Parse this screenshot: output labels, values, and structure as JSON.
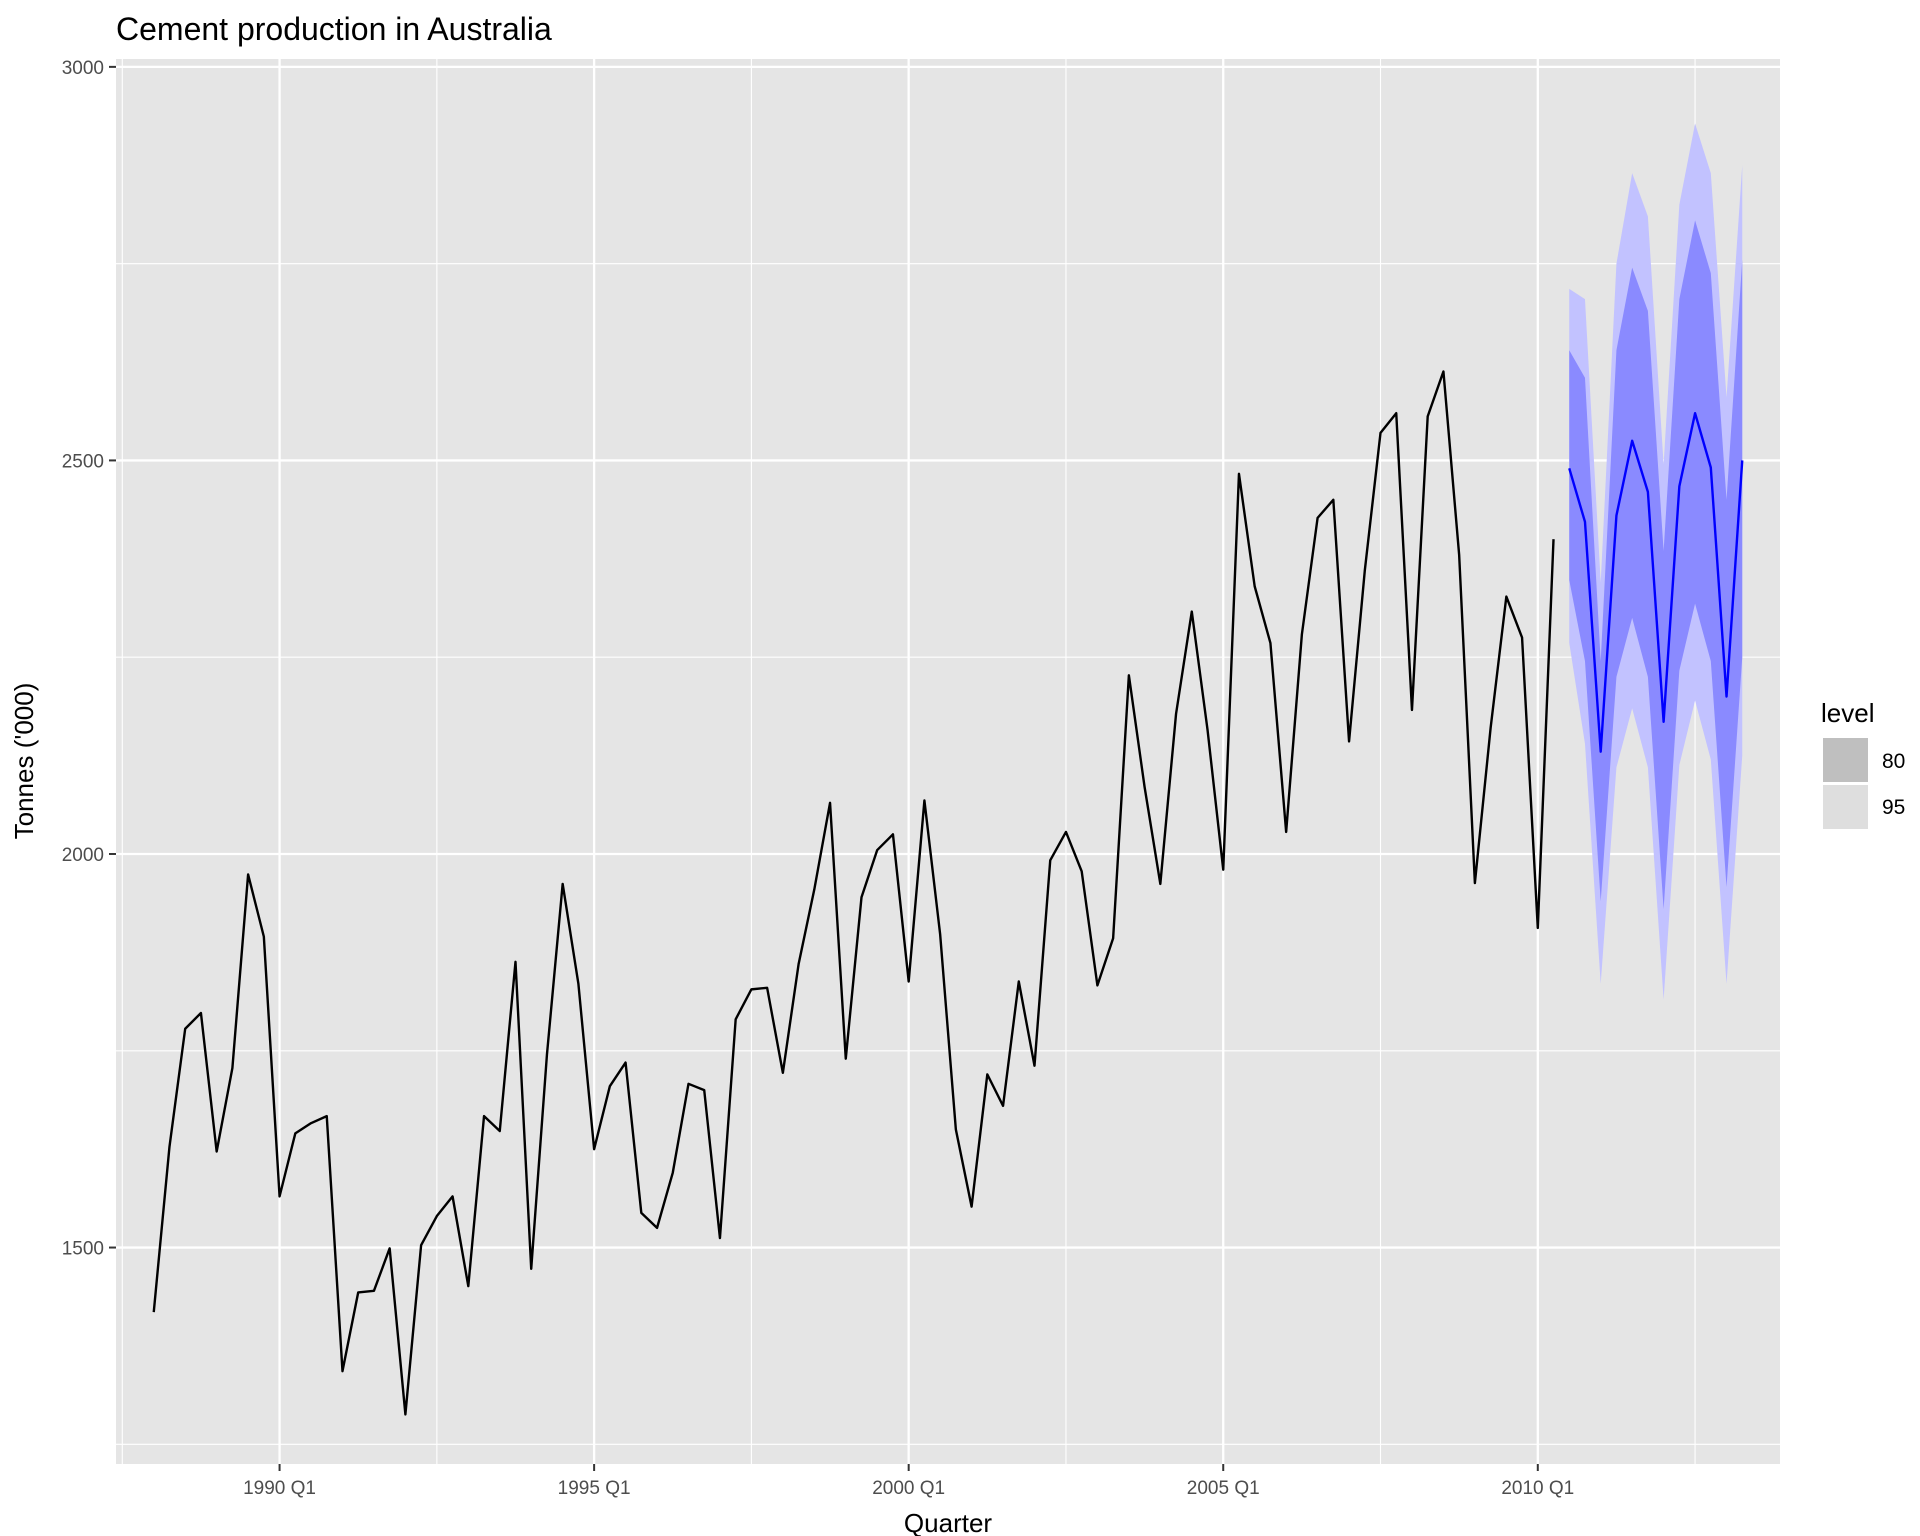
{
  "chart_data": {
    "type": "line",
    "title": "Cement production in Australia",
    "xlabel": "Quarter",
    "ylabel": "Tonnes ('000)",
    "xlim": [
      1987.4,
      2013.85
    ],
    "ylim": [
      1225,
      3010
    ],
    "x_ticks": [
      {
        "value": 1990.0,
        "label": "1990 Q1"
      },
      {
        "value": 1995.0,
        "label": "1995 Q1"
      },
      {
        "value": 2000.0,
        "label": "2000 Q1"
      },
      {
        "value": 2005.0,
        "label": "2005 Q1"
      },
      {
        "value": 2010.0,
        "label": "2010 Q1"
      }
    ],
    "y_ticks": [
      1500,
      2000,
      2500,
      3000
    ],
    "grid": true,
    "series": [
      {
        "role": "history",
        "color": "#000000",
        "x": [
          1988.0,
          1988.25,
          1988.5,
          1988.75,
          1989.0,
          1989.25,
          1989.5,
          1989.75,
          1990.0,
          1990.25,
          1990.5,
          1990.75,
          1991.0,
          1991.25,
          1991.5,
          1991.75,
          1992.0,
          1992.25,
          1992.5,
          1992.75,
          1993.0,
          1993.25,
          1993.5,
          1993.75,
          1994.0,
          1994.25,
          1994.5,
          1994.75,
          1995.0,
          1995.25,
          1995.5,
          1995.75,
          1996.0,
          1996.25,
          1996.5,
          1996.75,
          1997.0,
          1997.25,
          1997.5,
          1997.75,
          1998.0,
          1998.25,
          1998.5,
          1998.75,
          1999.0,
          1999.25,
          1999.5,
          1999.75,
          2000.0,
          2000.25,
          2000.5,
          2000.75,
          2001.0,
          2001.25,
          2001.5,
          2001.75,
          2002.0,
          2002.25,
          2002.5,
          2002.75,
          2003.0,
          2003.25,
          2003.5,
          2003.75,
          2004.0,
          2004.25,
          2004.5,
          2004.75,
          2005.0,
          2005.25,
          2005.5,
          2005.75,
          2006.0,
          2006.25,
          2006.5,
          2006.75,
          2007.0,
          2007.25,
          2007.5,
          2007.75,
          2008.0,
          2008.25,
          2008.5,
          2008.75,
          2009.0,
          2009.25,
          2009.5,
          2009.75,
          2010.0,
          2010.25
        ],
        "values": [
          1418,
          1628,
          1778,
          1798,
          1622,
          1728,
          1974,
          1895,
          1565,
          1645,
          1658,
          1667,
          1343,
          1443,
          1445,
          1499,
          1288,
          1503,
          1540,
          1565,
          1451,
          1667,
          1648,
          1863,
          1473,
          1745,
          1962,
          1835,
          1625,
          1705,
          1735,
          1544,
          1525,
          1595,
          1708,
          1700,
          1512,
          1790,
          1828,
          1830,
          1722,
          1860,
          1955,
          2065,
          1740,
          1945,
          2005,
          2025,
          1838,
          2068,
          1898,
          1650,
          1552,
          1720,
          1680,
          1838,
          1731,
          1992,
          2028,
          1978,
          1833,
          1893,
          2227,
          2085,
          1962,
          2178,
          2308,
          2158,
          1980,
          2483,
          2340,
          2268,
          2028,
          2279,
          2427,
          2450,
          2143,
          2360,
          2535,
          2560,
          2183,
          2556,
          2613,
          2380,
          1963,
          2160,
          2327,
          2275,
          1906,
          2400
        ]
      },
      {
        "role": "forecast",
        "color": "#0000ff",
        "x": [
          2010.5,
          2010.75,
          2011.0,
          2011.25,
          2011.5,
          2011.75,
          2012.0,
          2012.25,
          2012.5,
          2012.75,
          2013.0,
          2013.25
        ],
        "values": [
          2490,
          2422,
          2130,
          2430,
          2525,
          2460,
          2168,
          2467,
          2560,
          2491,
          2200,
          2500
        ]
      }
    ],
    "intervals": {
      "x": [
        2010.5,
        2010.75,
        2011.0,
        2011.25,
        2011.5,
        2011.75,
        2012.0,
        2012.25,
        2012.5,
        2012.75,
        2013.0,
        2013.25
      ],
      "lo95": [
        2268,
        2140,
        1835,
        2110,
        2185,
        2110,
        1815,
        2113,
        2195,
        2120,
        1835,
        2125
      ],
      "hi95": [
        2718,
        2705,
        2345,
        2750,
        2865,
        2810,
        2495,
        2825,
        2928,
        2865,
        2580,
        2875
      ],
      "lo80": [
        2348,
        2245,
        1940,
        2225,
        2300,
        2225,
        1930,
        2233,
        2318,
        2245,
        1958,
        2250
      ],
      "hi80": [
        2640,
        2605,
        2245,
        2640,
        2745,
        2690,
        2385,
        2705,
        2805,
        2738,
        2450,
        2755
      ]
    },
    "legend": {
      "title": "level",
      "position": "right",
      "items": [
        {
          "label": "80",
          "color": "#bfbfbf"
        },
        {
          "label": "95",
          "color": "#dedede"
        }
      ]
    },
    "colors": {
      "panel_bg": "#e5e5e5",
      "grid": "#ffffff",
      "band95": "#c2c2ff",
      "band80": "#8a8aff"
    }
  }
}
